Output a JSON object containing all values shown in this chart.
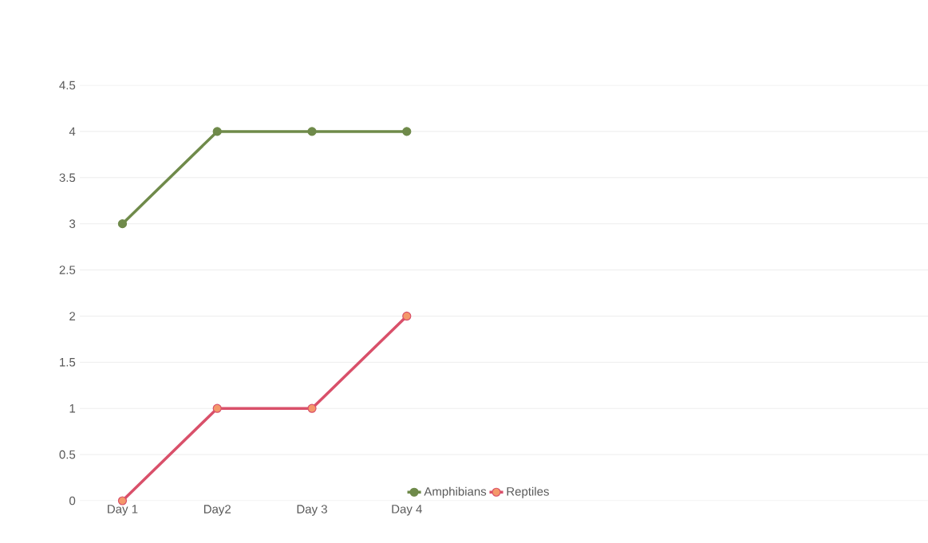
{
  "chart_data": {
    "type": "line",
    "categories": [
      "Day 1",
      "Day2",
      "Day 3",
      "Day 4"
    ],
    "series": [
      {
        "name": "Amphibians",
        "color": "#6f8a4a",
        "values": [
          3,
          4,
          4,
          4
        ]
      },
      {
        "name": "Reptiles",
        "color": "#d9506a",
        "values": [
          0,
          1,
          1,
          2
        ]
      }
    ],
    "ylim": [
      0,
      4.5
    ],
    "yticks": [
      0,
      0.5,
      1,
      1.5,
      2,
      2.5,
      3,
      3.5,
      4,
      4.5
    ],
    "grid": "y",
    "legend": "bottom",
    "marker": "circle",
    "line_style": "solid"
  }
}
